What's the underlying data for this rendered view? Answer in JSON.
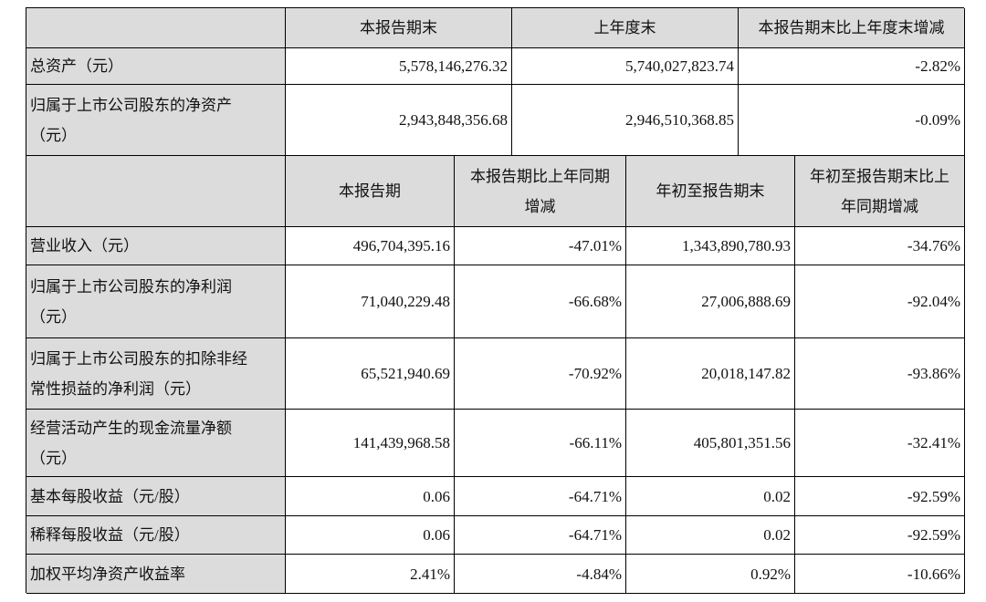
{
  "table1": {
    "columns": [
      [
        "本报告期末"
      ],
      [
        "上年度末"
      ],
      [
        "本报告期末比上年度末增减"
      ]
    ],
    "rows": [
      {
        "label": [
          "总资产（元）"
        ],
        "values": [
          "5,578,146,276.32",
          "5,740,027,823.74",
          "-2.82%"
        ]
      },
      {
        "label": [
          "归属于上市公司股东的净资产",
          "（元）"
        ],
        "values": [
          "2,943,848,356.68",
          "2,946,510,368.85",
          "-0.09%"
        ]
      }
    ]
  },
  "table2": {
    "columns": [
      [
        "本报告期"
      ],
      [
        "本报告期比上年同期",
        "增减"
      ],
      [
        "年初至报告期末"
      ],
      [
        "年初至报告期末比上",
        "年同期增减"
      ]
    ],
    "rows": [
      {
        "label": [
          "营业收入（元）"
        ],
        "values": [
          "496,704,395.16",
          "-47.01%",
          "1,343,890,780.93",
          "-34.76%"
        ]
      },
      {
        "label": [
          "归属于上市公司股东的净利润",
          "（元）"
        ],
        "values": [
          "71,040,229.48",
          "-66.68%",
          "27,006,888.69",
          "-92.04%"
        ]
      },
      {
        "label": [
          "归属于上市公司股东的扣除非经",
          "常性损益的净利润（元）"
        ],
        "values": [
          "65,521,940.69",
          "-70.92%",
          "20,018,147.82",
          "-93.86%"
        ]
      },
      {
        "label": [
          "经营活动产生的现金流量净额",
          "（元）"
        ],
        "values": [
          "141,439,968.58",
          "-66.11%",
          "405,801,351.56",
          "-32.41%"
        ]
      },
      {
        "label": [
          "基本每股收益（元/股）"
        ],
        "values": [
          "0.06",
          "-64.71%",
          "0.02",
          "-92.59%"
        ]
      },
      {
        "label": [
          "稀释每股收益（元/股）"
        ],
        "values": [
          "0.06",
          "-64.71%",
          "0.02",
          "-92.59%"
        ]
      },
      {
        "label": [
          "加权平均净资产收益率"
        ],
        "values": [
          "2.41%",
          "-4.84%",
          "0.92%",
          "-10.66%"
        ]
      }
    ]
  }
}
